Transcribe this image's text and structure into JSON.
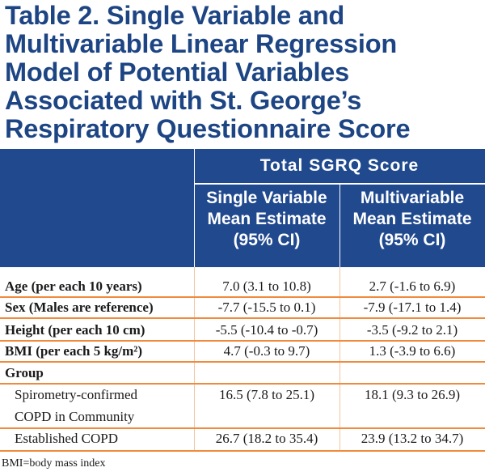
{
  "title_lines": [
    "Table 2. Single Variable and",
    "Multivariable Linear Regression",
    "Model of Potential Variables",
    "Associated with St. George’s",
    "Respiratory Questionnaire Score"
  ],
  "header": {
    "group": "Total SGRQ Score",
    "single": [
      "Single Variable",
      "Mean Estimate",
      "(95% CI)"
    ],
    "multi": [
      "Multivariable",
      "Mean Estimate",
      "(95% CI)"
    ]
  },
  "rows": [
    {
      "label": "Age (per each 10 years)",
      "single": "7.0 (3.1 to 10.8)",
      "multi": "2.7 (-1.6 to 6.9)"
    },
    {
      "label": "Sex (Males are reference)",
      "single": "-7.7 (-15.5 to 0.1)",
      "multi": "-7.9 (-17.1 to 1.4)"
    },
    {
      "label": "Height (per each 10 cm)",
      "single": "-5.5 (-10.4 to -0.7)",
      "multi": "-3.5 (-9.2 to 2.1)"
    },
    {
      "label": "BMI (per each 5 kg/m²)",
      "single": "4.7 (-0.3 to 9.7)",
      "multi": "1.3 (-3.9 to 6.6)"
    },
    {
      "label": "Group"
    },
    {
      "label_lines": [
        "Spirometry-confirmed",
        "COPD in Community"
      ],
      "single": "16.5 (7.8 to 25.1)",
      "multi": "18.1 (9.3 to 26.9)"
    },
    {
      "label": "Established COPD",
      "single": "26.7 (18.2 to 35.4)",
      "multi": "23.9 (13.2 to 34.7)"
    }
  ],
  "footnote": "BMI=body mass index",
  "colors": {
    "title": "#1d4584",
    "header_bg": "#20498e",
    "row_rule": "#f08a3c",
    "column_rule": "#f5c49f"
  }
}
